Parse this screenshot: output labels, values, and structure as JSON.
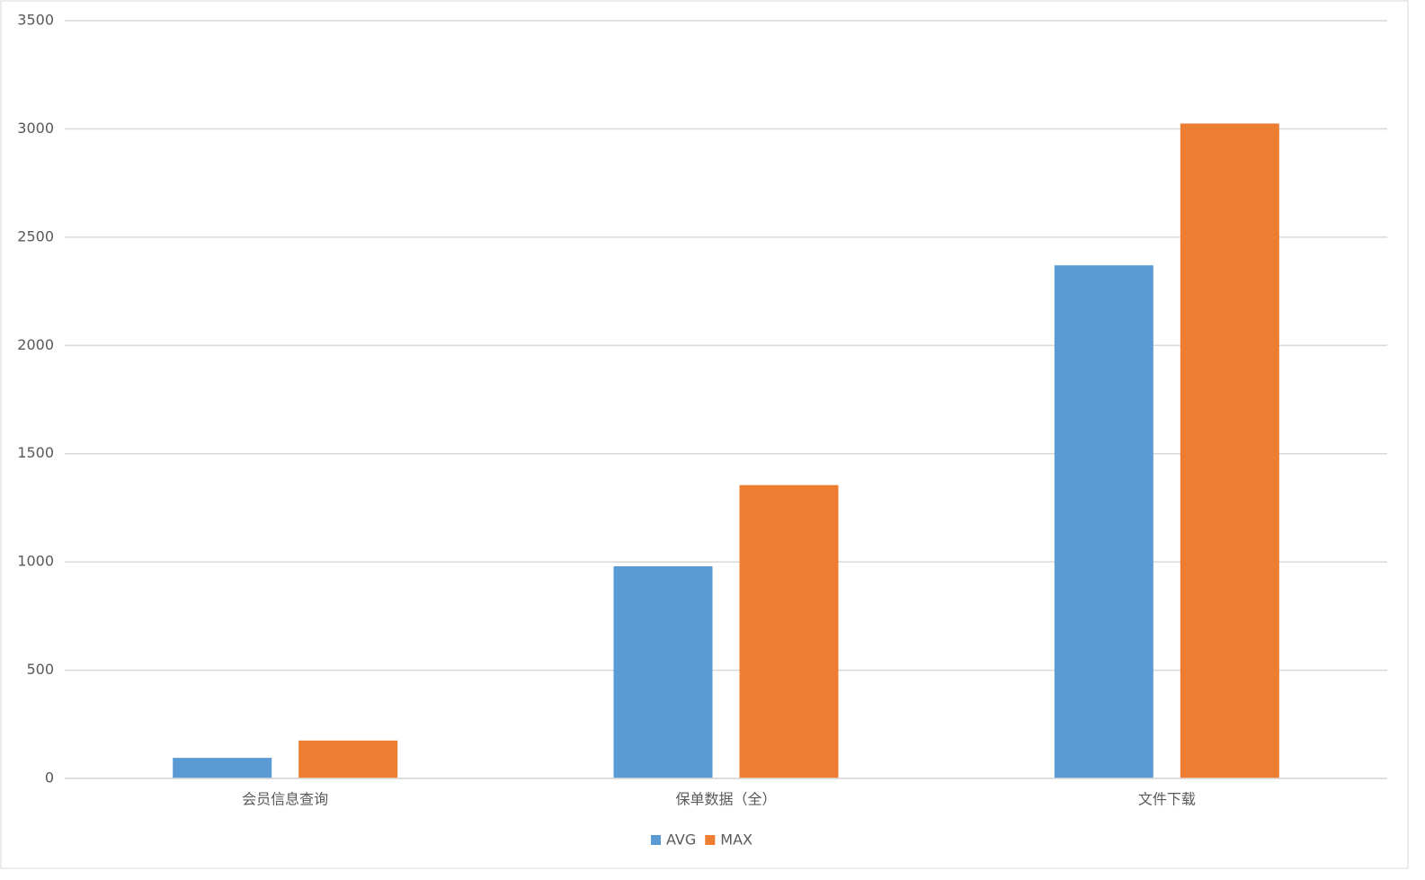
{
  "chart_data": {
    "type": "bar",
    "categories": [
      "会员信息查询",
      "保单数据（全）",
      "文件下载"
    ],
    "series": [
      {
        "name": "AVG",
        "color": "#5b9bd5",
        "values": [
          95,
          980,
          2370
        ]
      },
      {
        "name": "MAX",
        "color": "#ed7d31",
        "values": [
          175,
          1355,
          3025
        ]
      }
    ],
    "ylim": [
      0,
      3500
    ],
    "yticks": [
      0,
      500,
      1000,
      1500,
      2000,
      2500,
      3000,
      3500
    ],
    "grid": true,
    "legend": "bottom"
  }
}
